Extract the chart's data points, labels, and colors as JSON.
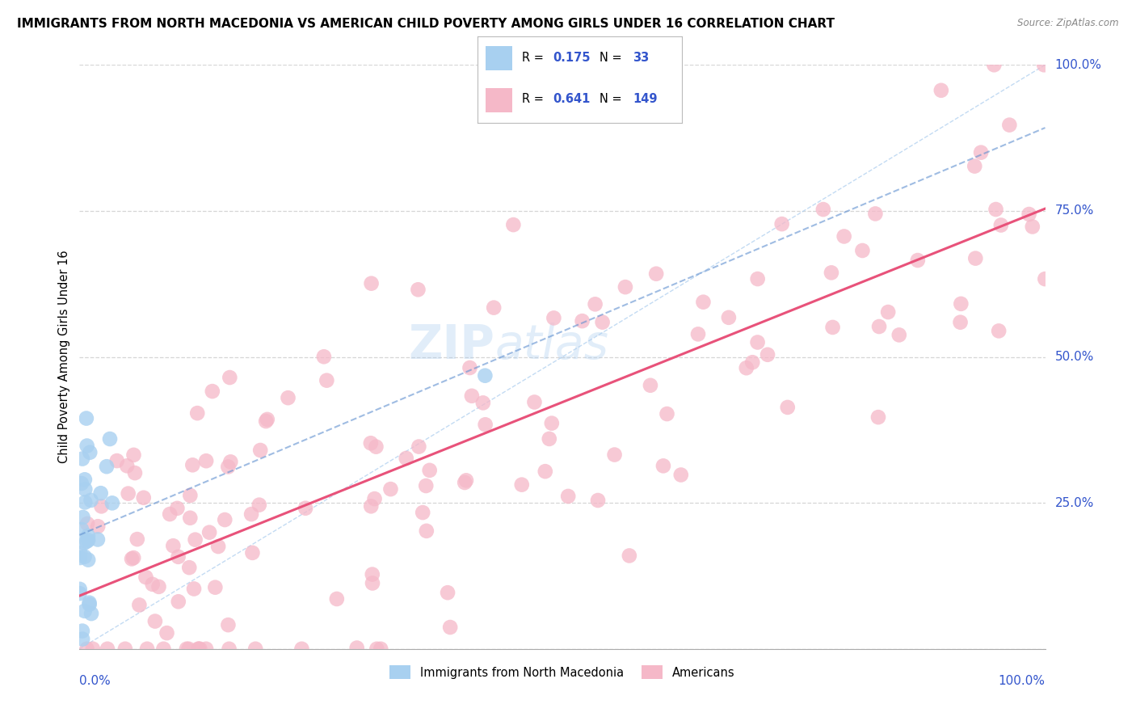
{
  "title": "IMMIGRANTS FROM NORTH MACEDONIA VS AMERICAN CHILD POVERTY AMONG GIRLS UNDER 16 CORRELATION CHART",
  "source": "Source: ZipAtlas.com",
  "ylabel": "Child Poverty Among Girls Under 16",
  "legend_label1": "Immigrants from North Macedonia",
  "legend_label2": "Americans",
  "color_blue": "#a8d0f0",
  "color_pink": "#f5b8c8",
  "color_line_pink": "#e8527a",
  "color_line_blue": "#6090d0",
  "color_text_blue": "#3355cc",
  "color_grid": "#cccccc",
  "color_diag": "#aaccee",
  "R1": 0.175,
  "N1": 33,
  "R2": 0.641,
  "N2": 149,
  "watermark1": "ZIP",
  "watermark2": "atlas",
  "background_color": "#ffffff"
}
